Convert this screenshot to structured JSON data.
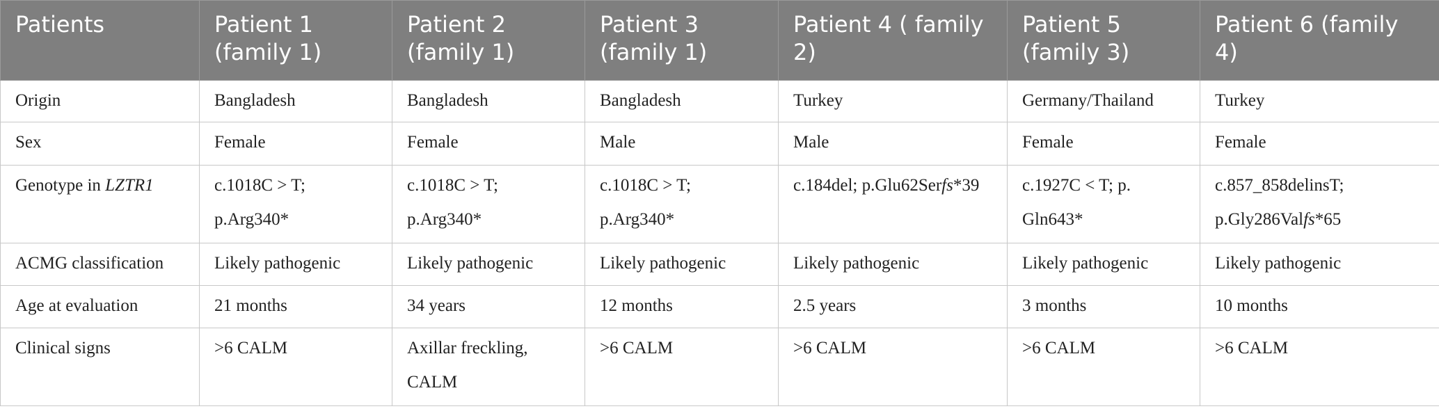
{
  "table": {
    "header": [
      "Patients",
      "Patient 1 (family 1)",
      "Patient 2 (family 1)",
      "Patient 3 (family 1)",
      "Patient 4 ( family 2)",
      "Patient 5 (family 3)",
      "Patient 6 (family 4)"
    ],
    "rows": [
      [
        "Origin",
        "Bangladesh",
        "Bangladesh",
        "Bangladesh",
        "Turkey",
        "Germany/Thailand",
        "Turkey"
      ],
      [
        "Sex",
        "Female",
        "Female",
        "Male",
        "Male",
        "Female",
        "Female"
      ],
      [
        [
          {
            "text": "Genotype in "
          },
          {
            "text": "LZTR1",
            "style": "italic"
          }
        ],
        "c.1018C > T; p.Arg340*",
        "c.1018C > T; p.Arg340*",
        "c.1018C > T; p.Arg340*",
        [
          {
            "text": "c.184del; p.Glu62Ser"
          },
          {
            "text": "fs",
            "style": "italic"
          },
          {
            "text": "*39"
          }
        ],
        "c.1927C < T; p. Gln643*",
        [
          {
            "text": "c.857_858delinsT; p.Gly286Val"
          },
          {
            "text": "fs",
            "style": "italic"
          },
          {
            "text": "*65"
          }
        ]
      ],
      [
        "ACMG classification",
        "Likely pathogenic",
        "Likely pathogenic",
        "Likely pathogenic",
        "Likely pathogenic",
        "Likely pathogenic",
        "Likely pathogenic"
      ],
      [
        "Age at evaluation",
        "21 months",
        "34 years",
        "12 months",
        "2.5 years",
        "3 months",
        "10 months"
      ],
      [
        "Clinical signs",
        ">6 CALM",
        "Axillar freckling, CALM",
        ">6 CALM",
        ">6 CALM",
        ">6 CALM",
        ">6 CALM"
      ]
    ]
  }
}
